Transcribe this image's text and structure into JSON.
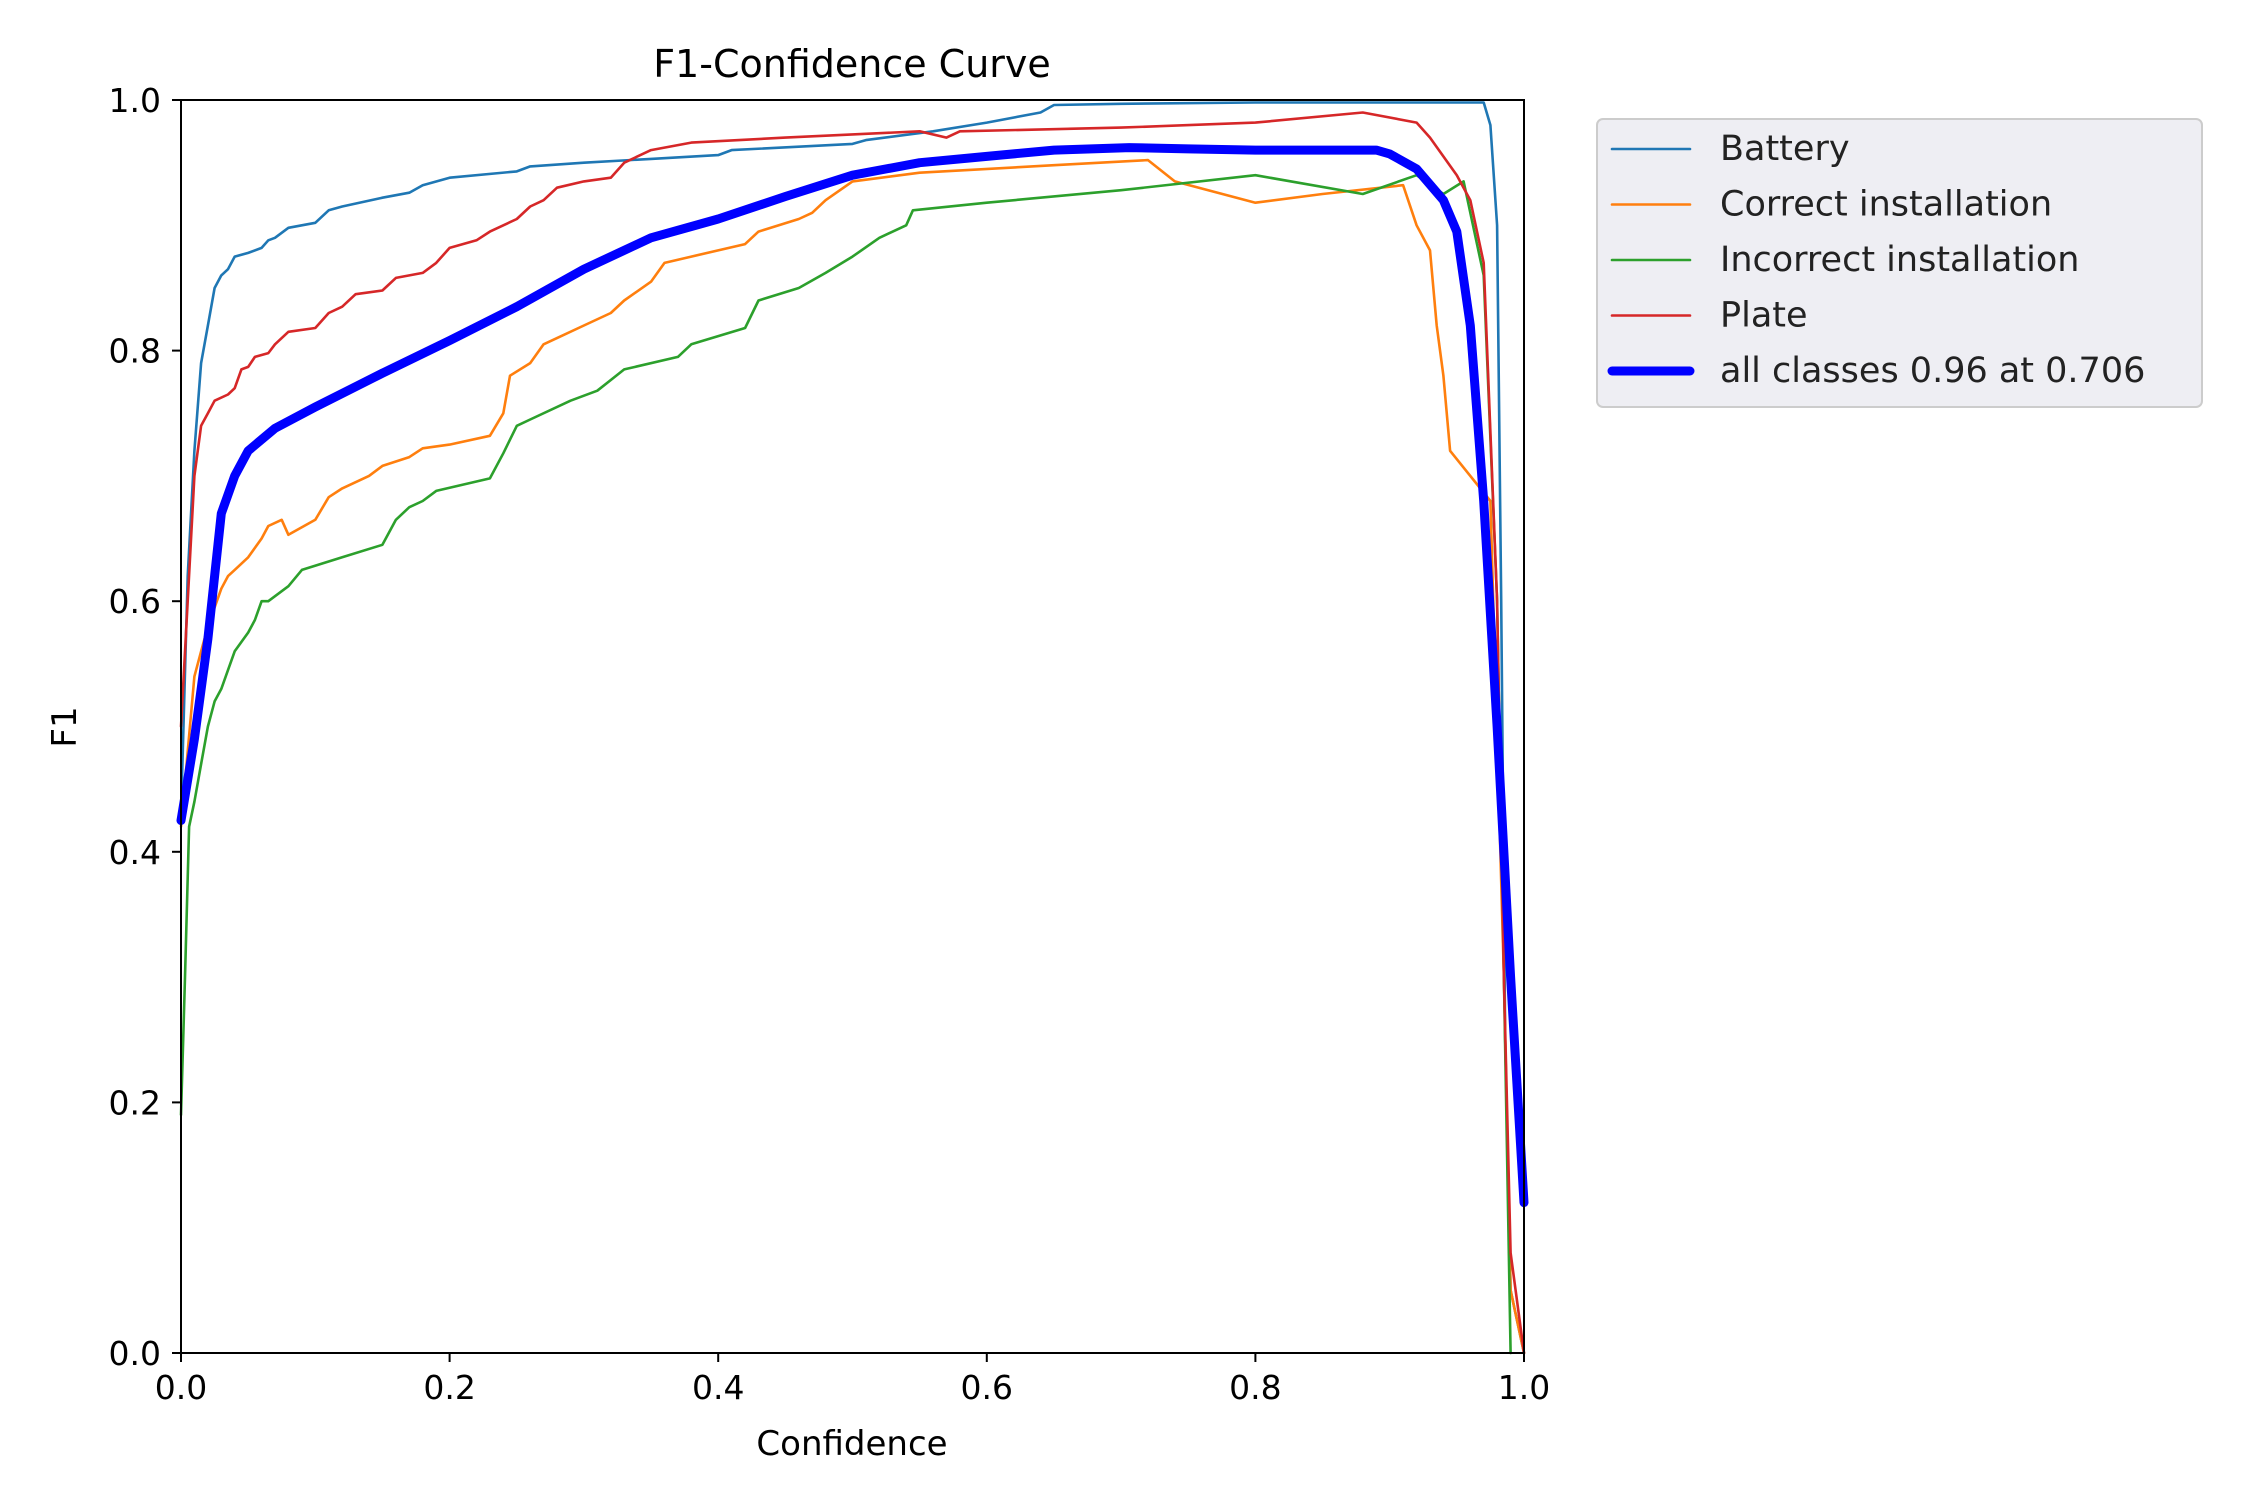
{
  "chart_data": {
    "type": "line",
    "title": "F1-Confidence Curve",
    "xlabel": "Confidence",
    "ylabel": "F1",
    "xlim": [
      0,
      1
    ],
    "ylim": [
      0,
      1
    ],
    "x_ticks": [
      "0.0",
      "0.2",
      "0.4",
      "0.6",
      "0.8",
      "1.0"
    ],
    "y_ticks": [
      "0.0",
      "0.2",
      "0.4",
      "0.6",
      "0.8",
      "1.0"
    ],
    "grid": false,
    "legend_position": "outside-top-right",
    "series": [
      {
        "name": "Battery",
        "color": "#1f77b4",
        "points": [
          [
            0.0,
            0.43
          ],
          [
            0.005,
            0.62
          ],
          [
            0.01,
            0.72
          ],
          [
            0.015,
            0.79
          ],
          [
            0.02,
            0.82
          ],
          [
            0.025,
            0.85
          ],
          [
            0.03,
            0.86
          ],
          [
            0.035,
            0.865
          ],
          [
            0.04,
            0.875
          ],
          [
            0.05,
            0.878
          ],
          [
            0.06,
            0.882
          ],
          [
            0.065,
            0.888
          ],
          [
            0.07,
            0.89
          ],
          [
            0.08,
            0.898
          ],
          [
            0.1,
            0.902
          ],
          [
            0.11,
            0.912
          ],
          [
            0.12,
            0.915
          ],
          [
            0.15,
            0.922
          ],
          [
            0.17,
            0.926
          ],
          [
            0.18,
            0.932
          ],
          [
            0.2,
            0.938
          ],
          [
            0.25,
            0.943
          ],
          [
            0.26,
            0.947
          ],
          [
            0.3,
            0.95
          ],
          [
            0.35,
            0.953
          ],
          [
            0.4,
            0.956
          ],
          [
            0.41,
            0.96
          ],
          [
            0.5,
            0.965
          ],
          [
            0.51,
            0.968
          ],
          [
            0.56,
            0.975
          ],
          [
            0.6,
            0.982
          ],
          [
            0.64,
            0.99
          ],
          [
            0.65,
            0.996
          ],
          [
            0.7,
            0.997
          ],
          [
            0.8,
            0.998
          ],
          [
            0.9,
            0.998
          ],
          [
            0.97,
            0.998
          ],
          [
            0.975,
            0.98
          ],
          [
            0.98,
            0.9
          ],
          [
            0.983,
            0.6
          ],
          [
            0.986,
            0.25
          ],
          [
            0.99,
            0.05
          ],
          [
            1.0,
            0.0
          ]
        ]
      },
      {
        "name": "Correct installation",
        "color": "#ff7f0e",
        "points": [
          [
            0.0,
            0.42
          ],
          [
            0.005,
            0.48
          ],
          [
            0.01,
            0.54
          ],
          [
            0.015,
            0.56
          ],
          [
            0.02,
            0.58
          ],
          [
            0.03,
            0.61
          ],
          [
            0.035,
            0.62
          ],
          [
            0.04,
            0.625
          ],
          [
            0.05,
            0.635
          ],
          [
            0.06,
            0.65
          ],
          [
            0.065,
            0.66
          ],
          [
            0.075,
            0.665
          ],
          [
            0.08,
            0.653
          ],
          [
            0.1,
            0.665
          ],
          [
            0.11,
            0.683
          ],
          [
            0.12,
            0.69
          ],
          [
            0.14,
            0.7
          ],
          [
            0.15,
            0.708
          ],
          [
            0.17,
            0.715
          ],
          [
            0.18,
            0.722
          ],
          [
            0.2,
            0.725
          ],
          [
            0.23,
            0.732
          ],
          [
            0.24,
            0.75
          ],
          [
            0.245,
            0.78
          ],
          [
            0.26,
            0.79
          ],
          [
            0.27,
            0.805
          ],
          [
            0.28,
            0.81
          ],
          [
            0.3,
            0.82
          ],
          [
            0.32,
            0.83
          ],
          [
            0.33,
            0.84
          ],
          [
            0.35,
            0.855
          ],
          [
            0.36,
            0.87
          ],
          [
            0.38,
            0.875
          ],
          [
            0.42,
            0.885
          ],
          [
            0.43,
            0.895
          ],
          [
            0.46,
            0.905
          ],
          [
            0.47,
            0.91
          ],
          [
            0.48,
            0.92
          ],
          [
            0.5,
            0.935
          ],
          [
            0.55,
            0.942
          ],
          [
            0.65,
            0.948
          ],
          [
            0.72,
            0.952
          ],
          [
            0.74,
            0.935
          ],
          [
            0.8,
            0.918
          ],
          [
            0.85,
            0.925
          ],
          [
            0.91,
            0.932
          ],
          [
            0.92,
            0.9
          ],
          [
            0.93,
            0.88
          ],
          [
            0.935,
            0.82
          ],
          [
            0.94,
            0.78
          ],
          [
            0.945,
            0.72
          ],
          [
            0.96,
            0.7
          ],
          [
            0.975,
            0.68
          ],
          [
            0.985,
            0.3
          ],
          [
            0.99,
            0.05
          ],
          [
            1.0,
            0.0
          ]
        ]
      },
      {
        "name": "Incorrect installation",
        "color": "#2ca02c",
        "points": [
          [
            0.0,
            0.19
          ],
          [
            0.003,
            0.3
          ],
          [
            0.006,
            0.42
          ],
          [
            0.01,
            0.44
          ],
          [
            0.015,
            0.47
          ],
          [
            0.02,
            0.5
          ],
          [
            0.025,
            0.52
          ],
          [
            0.03,
            0.53
          ],
          [
            0.035,
            0.545
          ],
          [
            0.04,
            0.56
          ],
          [
            0.05,
            0.575
          ],
          [
            0.055,
            0.585
          ],
          [
            0.06,
            0.6
          ],
          [
            0.065,
            0.6
          ],
          [
            0.08,
            0.612
          ],
          [
            0.09,
            0.625
          ],
          [
            0.12,
            0.635
          ],
          [
            0.15,
            0.645
          ],
          [
            0.16,
            0.665
          ],
          [
            0.17,
            0.675
          ],
          [
            0.18,
            0.68
          ],
          [
            0.19,
            0.688
          ],
          [
            0.23,
            0.698
          ],
          [
            0.24,
            0.718
          ],
          [
            0.25,
            0.74
          ],
          [
            0.26,
            0.745
          ],
          [
            0.29,
            0.76
          ],
          [
            0.31,
            0.768
          ],
          [
            0.33,
            0.785
          ],
          [
            0.37,
            0.795
          ],
          [
            0.38,
            0.805
          ],
          [
            0.42,
            0.818
          ],
          [
            0.43,
            0.84
          ],
          [
            0.46,
            0.85
          ],
          [
            0.48,
            0.862
          ],
          [
            0.5,
            0.875
          ],
          [
            0.52,
            0.89
          ],
          [
            0.54,
            0.9
          ],
          [
            0.545,
            0.912
          ],
          [
            0.6,
            0.918
          ],
          [
            0.7,
            0.928
          ],
          [
            0.8,
            0.94
          ],
          [
            0.88,
            0.925
          ],
          [
            0.92,
            0.94
          ],
          [
            0.94,
            0.925
          ],
          [
            0.955,
            0.935
          ],
          [
            0.97,
            0.86
          ],
          [
            0.98,
            0.6
          ],
          [
            0.985,
            0.3
          ],
          [
            0.99,
            0.0
          ]
        ]
      },
      {
        "name": "Plate",
        "color": "#d62728",
        "points": [
          [
            0.0,
            0.5
          ],
          [
            0.005,
            0.6
          ],
          [
            0.01,
            0.7
          ],
          [
            0.015,
            0.74
          ],
          [
            0.02,
            0.75
          ],
          [
            0.025,
            0.76
          ],
          [
            0.035,
            0.765
          ],
          [
            0.04,
            0.77
          ],
          [
            0.045,
            0.785
          ],
          [
            0.05,
            0.787
          ],
          [
            0.055,
            0.795
          ],
          [
            0.065,
            0.798
          ],
          [
            0.07,
            0.805
          ],
          [
            0.08,
            0.815
          ],
          [
            0.1,
            0.818
          ],
          [
            0.11,
            0.83
          ],
          [
            0.12,
            0.835
          ],
          [
            0.13,
            0.845
          ],
          [
            0.15,
            0.848
          ],
          [
            0.16,
            0.858
          ],
          [
            0.18,
            0.862
          ],
          [
            0.19,
            0.87
          ],
          [
            0.2,
            0.882
          ],
          [
            0.22,
            0.888
          ],
          [
            0.23,
            0.895
          ],
          [
            0.25,
            0.905
          ],
          [
            0.26,
            0.915
          ],
          [
            0.27,
            0.92
          ],
          [
            0.28,
            0.93
          ],
          [
            0.3,
            0.935
          ],
          [
            0.32,
            0.938
          ],
          [
            0.33,
            0.95
          ],
          [
            0.35,
            0.96
          ],
          [
            0.38,
            0.966
          ],
          [
            0.45,
            0.97
          ],
          [
            0.55,
            0.975
          ],
          [
            0.57,
            0.97
          ],
          [
            0.58,
            0.975
          ],
          [
            0.7,
            0.978
          ],
          [
            0.8,
            0.982
          ],
          [
            0.88,
            0.99
          ],
          [
            0.92,
            0.982
          ],
          [
            0.93,
            0.97
          ],
          [
            0.95,
            0.94
          ],
          [
            0.96,
            0.92
          ],
          [
            0.97,
            0.87
          ],
          [
            0.98,
            0.6
          ],
          [
            0.985,
            0.3
          ],
          [
            0.99,
            0.08
          ],
          [
            1.0,
            0.0
          ]
        ]
      },
      {
        "name": "all classes 0.96 at 0.706",
        "color": "#0000ff",
        "thick": true,
        "points": [
          [
            0.0,
            0.425
          ],
          [
            0.01,
            0.49
          ],
          [
            0.02,
            0.57
          ],
          [
            0.03,
            0.67
          ],
          [
            0.04,
            0.7
          ],
          [
            0.05,
            0.72
          ],
          [
            0.07,
            0.738
          ],
          [
            0.1,
            0.755
          ],
          [
            0.15,
            0.782
          ],
          [
            0.2,
            0.808
          ],
          [
            0.25,
            0.835
          ],
          [
            0.3,
            0.865
          ],
          [
            0.35,
            0.89
          ],
          [
            0.4,
            0.905
          ],
          [
            0.45,
            0.923
          ],
          [
            0.5,
            0.94
          ],
          [
            0.55,
            0.95
          ],
          [
            0.6,
            0.955
          ],
          [
            0.65,
            0.96
          ],
          [
            0.706,
            0.962
          ],
          [
            0.75,
            0.961
          ],
          [
            0.8,
            0.96
          ],
          [
            0.85,
            0.96
          ],
          [
            0.89,
            0.96
          ],
          [
            0.9,
            0.957
          ],
          [
            0.92,
            0.945
          ],
          [
            0.94,
            0.92
          ],
          [
            0.95,
            0.895
          ],
          [
            0.96,
            0.82
          ],
          [
            0.97,
            0.68
          ],
          [
            0.98,
            0.5
          ],
          [
            0.99,
            0.3
          ],
          [
            1.0,
            0.12
          ]
        ]
      }
    ]
  }
}
